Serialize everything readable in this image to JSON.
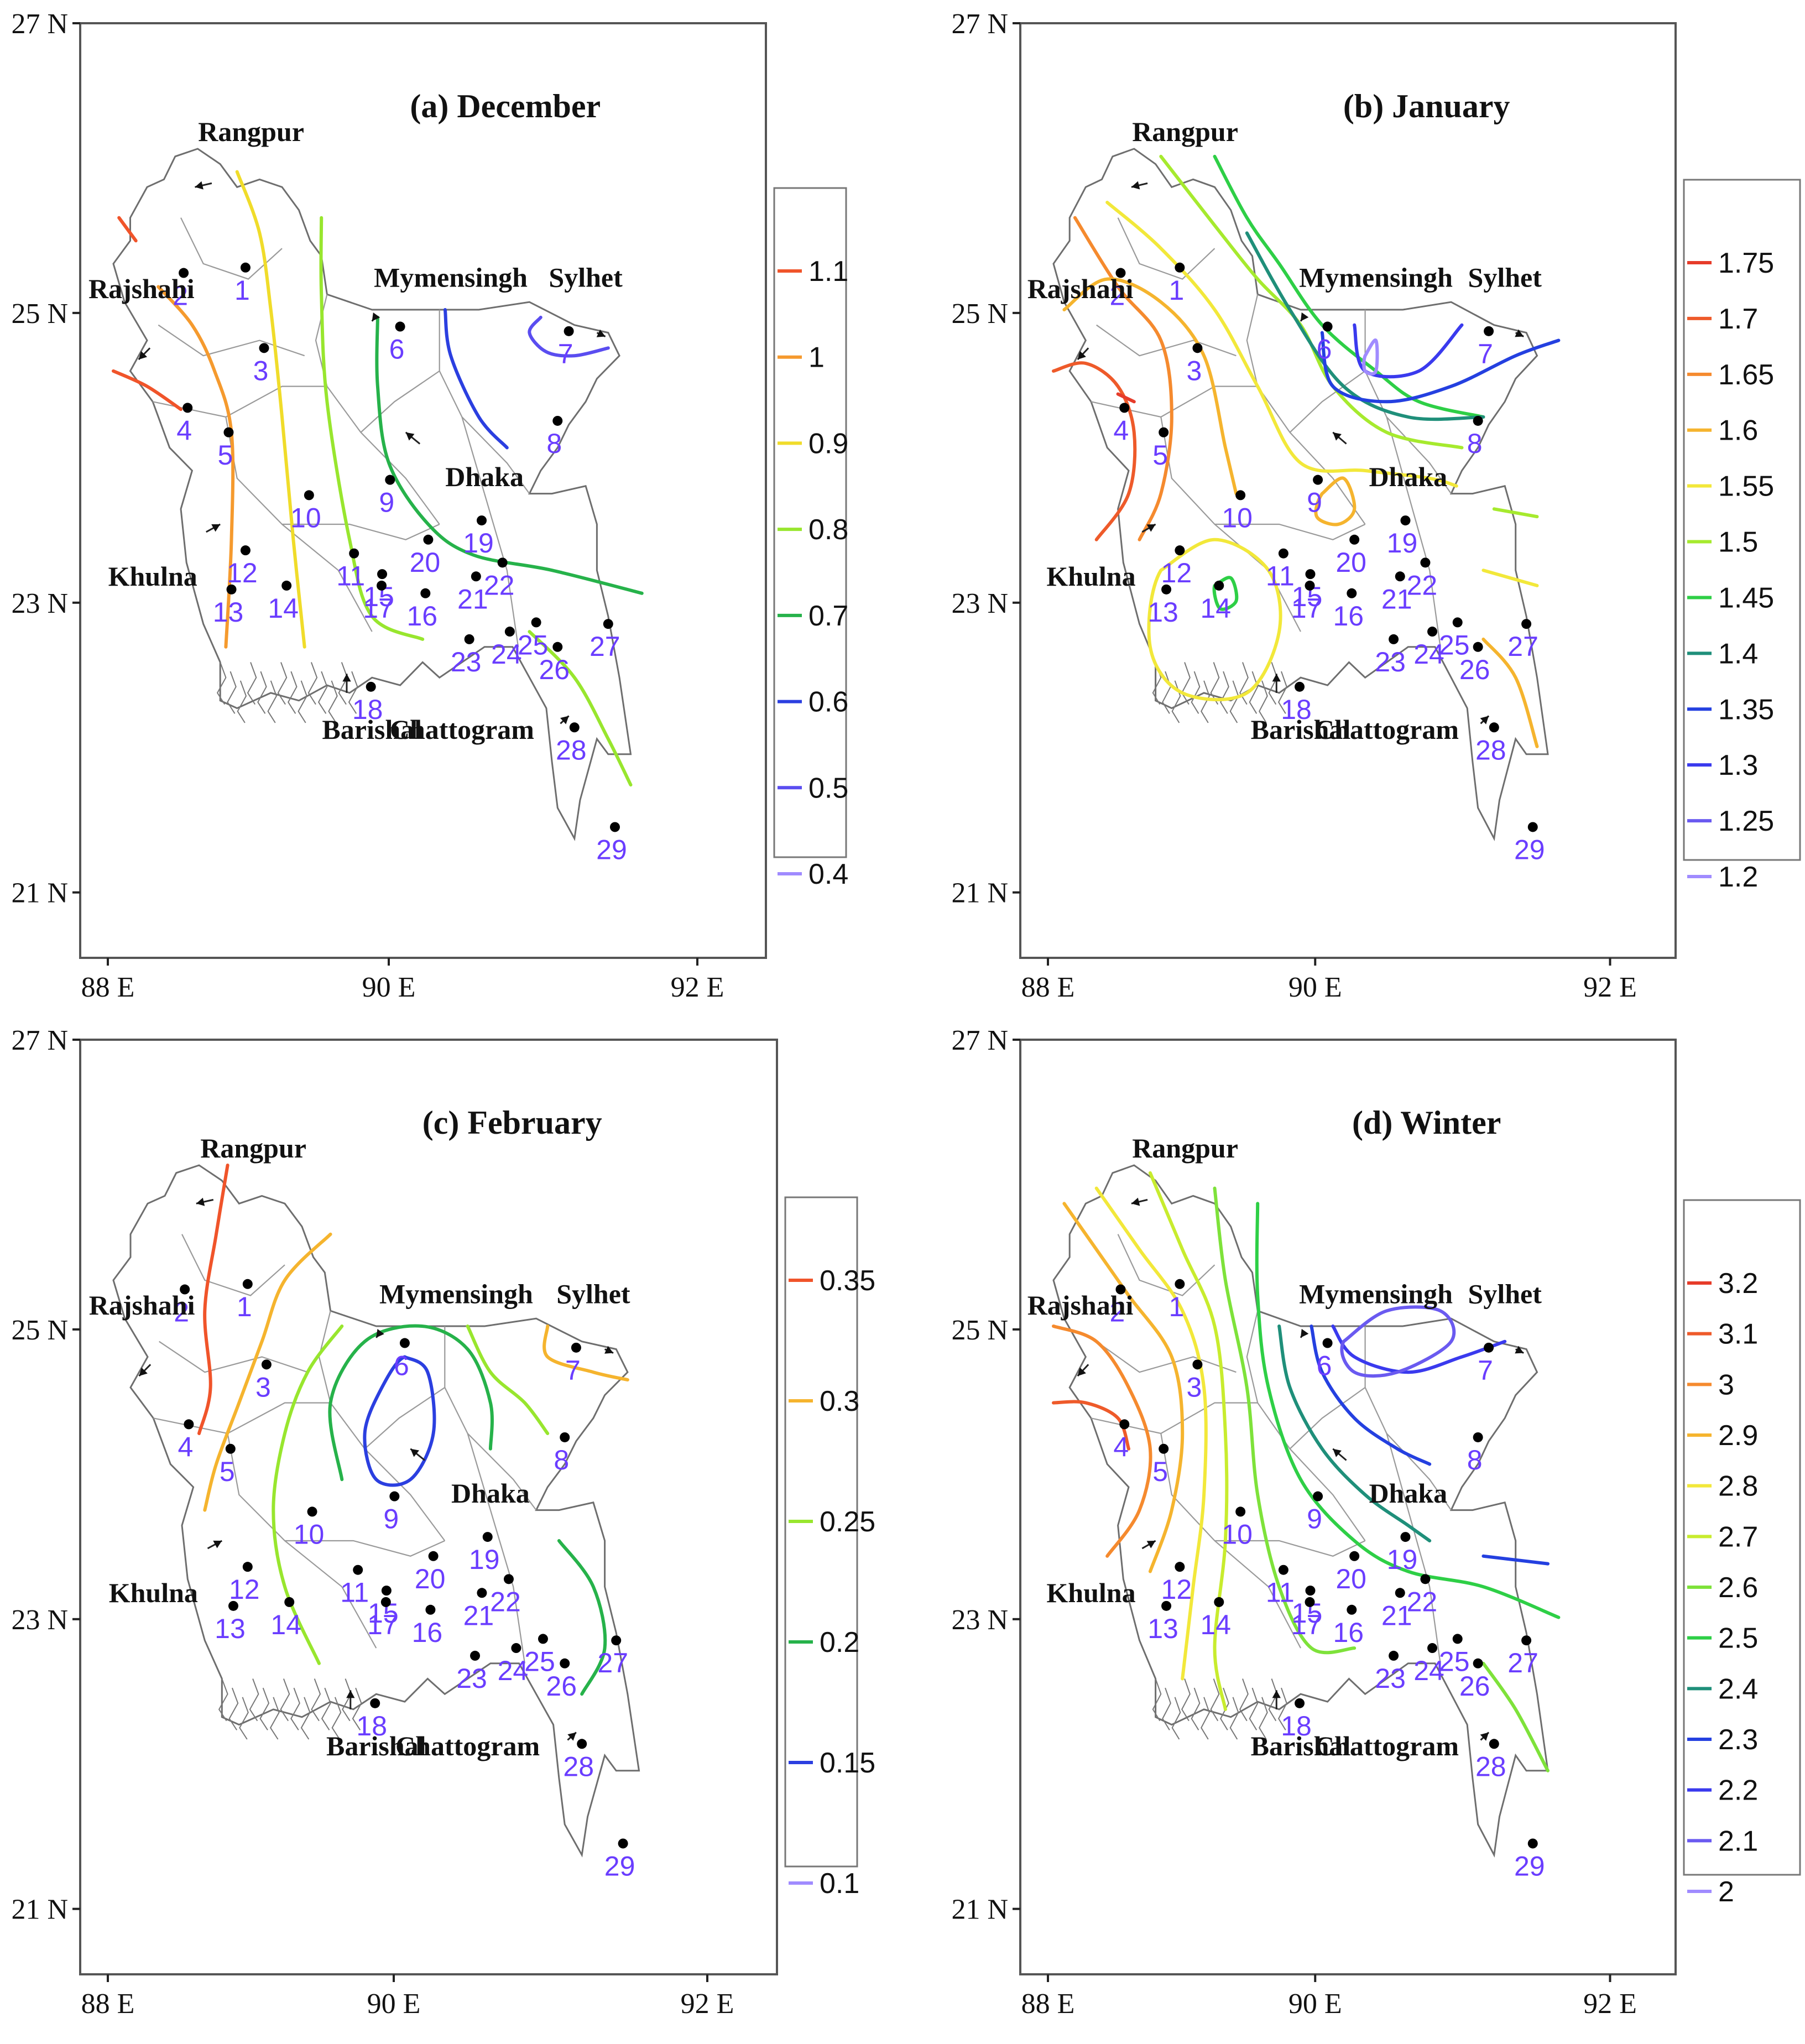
{
  "axes": {
    "lat_ticks": [
      "27 N",
      "25 N",
      "23 N",
      "21 N"
    ],
    "lon_ticks": [
      "88 E",
      "90 E",
      "92 E"
    ]
  },
  "cities": [
    "Rangpur",
    "Rajshahi",
    "Mymensingh",
    "Sylhet",
    "Dhaka",
    "Khulna",
    "Barishal",
    "Chattogram"
  ],
  "stations": [
    "1",
    "2",
    "3",
    "4",
    "5",
    "6",
    "7",
    "8",
    "9",
    "10",
    "11",
    "12",
    "13",
    "14",
    "15",
    "16",
    "17",
    "18",
    "19",
    "20",
    "21",
    "22",
    "23",
    "24",
    "25",
    "26",
    "27",
    "28",
    "29"
  ],
  "panels": [
    {
      "title": "(a) December",
      "legend": [
        {
          "label": "1.1",
          "color": "#f0542a"
        },
        {
          "label": "1",
          "color": "#f59a2e"
        },
        {
          "label": "0.9",
          "color": "#f0dc2a"
        },
        {
          "label": "0.8",
          "color": "#98e62e"
        },
        {
          "label": "0.7",
          "color": "#26b24a"
        },
        {
          "label": "0.6",
          "color": "#2b3fe0"
        },
        {
          "label": "0.5",
          "color": "#5a4df0"
        },
        {
          "label": "0.4",
          "color": "#a08bff"
        }
      ]
    },
    {
      "title": "(b) January",
      "legend": [
        {
          "label": "1.75",
          "color": "#e63c2a"
        },
        {
          "label": "1.7",
          "color": "#ee5a2a"
        },
        {
          "label": "1.65",
          "color": "#f58a2e"
        },
        {
          "label": "1.6",
          "color": "#f5b42e"
        },
        {
          "label": "1.55",
          "color": "#f2e83a"
        },
        {
          "label": "1.5",
          "color": "#a6ea2e"
        },
        {
          "label": "1.45",
          "color": "#2ecf46"
        },
        {
          "label": "1.4",
          "color": "#1f8f7a"
        },
        {
          "label": "1.35",
          "color": "#2440e0"
        },
        {
          "label": "1.3",
          "color": "#3a3aee"
        },
        {
          "label": "1.25",
          "color": "#6a5af0"
        },
        {
          "label": "1.2",
          "color": "#a08bff"
        }
      ]
    },
    {
      "title": "(c) February",
      "legend": [
        {
          "label": "0.35",
          "color": "#f0542a"
        },
        {
          "label": "0.3",
          "color": "#f5b42e"
        },
        {
          "label": "0.25",
          "color": "#98e62e"
        },
        {
          "label": "0.2",
          "color": "#26b24a"
        },
        {
          "label": "0.15",
          "color": "#2b3fe0"
        },
        {
          "label": "0.1",
          "color": "#a08bff"
        }
      ]
    },
    {
      "title": "(d) Winter",
      "legend": [
        {
          "label": "3.2",
          "color": "#e63c2a"
        },
        {
          "label": "3.1",
          "color": "#ee5a2a"
        },
        {
          "label": "3",
          "color": "#f58a2e"
        },
        {
          "label": "2.9",
          "color": "#f5b42e"
        },
        {
          "label": "2.8",
          "color": "#f2e83a"
        },
        {
          "label": "2.7",
          "color": "#c8ec2e"
        },
        {
          "label": "2.6",
          "color": "#7ee23a"
        },
        {
          "label": "2.5",
          "color": "#2ecf46"
        },
        {
          "label": "2.4",
          "color": "#1f8f7a"
        },
        {
          "label": "2.3",
          "color": "#2440e0"
        },
        {
          "label": "2.2",
          "color": "#3a3aee"
        },
        {
          "label": "2.1",
          "color": "#6a5af0"
        },
        {
          "label": "2",
          "color": "#a08bff"
        }
      ]
    }
  ]
}
